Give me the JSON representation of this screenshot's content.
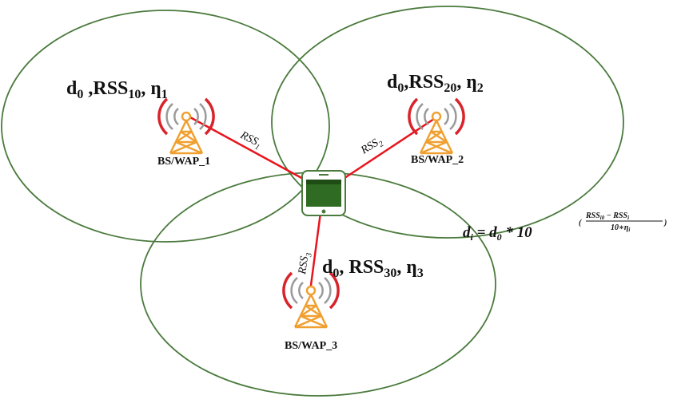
{
  "colors": {
    "coverage_circle": "#4a7a3c",
    "signal_line": "#e8141c",
    "tower": "#f0a030",
    "wave_inner": "#9a9a9a",
    "wave_outer": "#d9232a",
    "device_body": "#2f6b22",
    "device_dark": "#1e4c14"
  },
  "stations": [
    {
      "id": "1",
      "label": "BS/WAP_1",
      "params": {
        "d": "d",
        "d_sub": "0",
        "sep1": " ,",
        "rss": "RSS",
        "rss_sub": "10",
        "sep2": ", ",
        "eta": "ƞ",
        "eta_sub": "1"
      },
      "link": {
        "rss": "RSS",
        "rss_sub": "1"
      }
    },
    {
      "id": "2",
      "label": "BS/WAP_2",
      "params": {
        "d": "d",
        "d_sub": "0",
        "sep1": ",",
        "rss": "RSS",
        "rss_sub": "20",
        "sep2": ", ",
        "eta": "ƞ",
        "eta_sub": "2"
      },
      "link": {
        "rss": "RSS",
        "rss_sub": "2"
      }
    },
    {
      "id": "3",
      "label": "BS/WAP_3",
      "params": {
        "d": "d",
        "d_sub": "0",
        "sep1": ", ",
        "rss": "RSS",
        "rss_sub": "30",
        "sep2": ", ",
        "eta": "ƞ",
        "eta_sub": "3"
      },
      "link": {
        "rss": "RSS",
        "rss_sub": "3"
      }
    }
  ],
  "formula": {
    "lhs": "d",
    "lhs_sub": "i",
    "middle": " = d",
    "middle_sub": "0",
    "op": " * 10",
    "open_paren": "(",
    "close_paren": ")",
    "numerator": "RSS",
    "numerator_sub": "i0",
    "numerator_op": " − RSS",
    "numerator_sub2": "i",
    "denominator": "10∗ƞ",
    "denominator_sub": "i"
  }
}
